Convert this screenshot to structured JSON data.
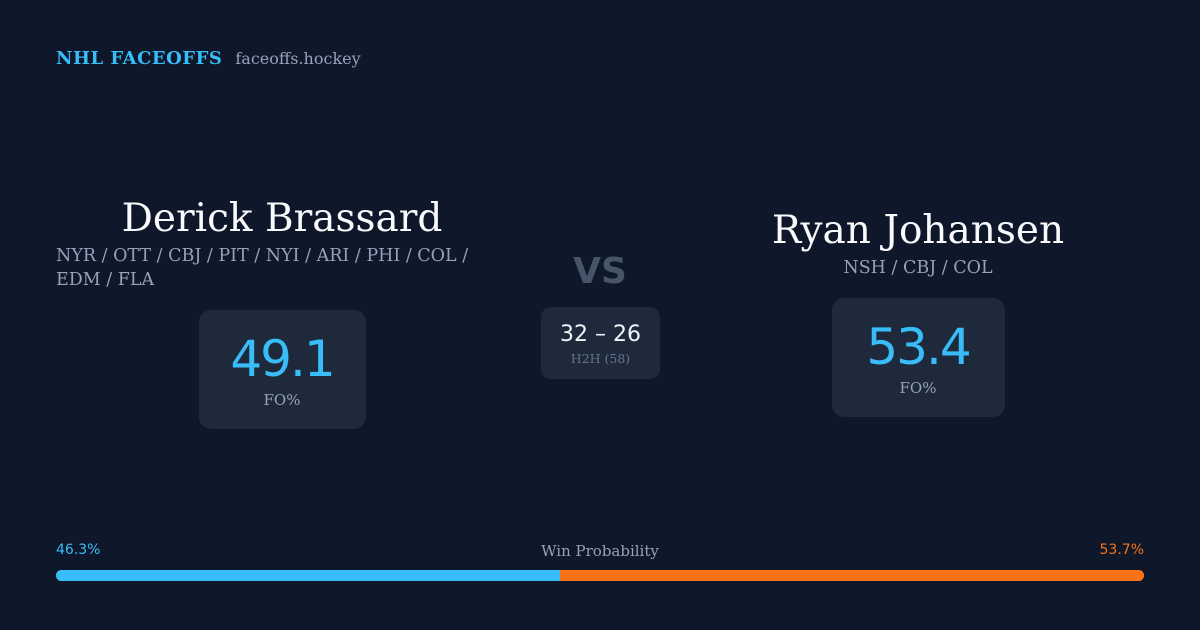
{
  "brand": {
    "name": "NHL FACEOFFS",
    "url": "faceoffs.hockey"
  },
  "player_left": {
    "name": "Derick Brassard",
    "teams": "NYR / OTT / CBJ / PIT / NYI / ARI / PHI / COL / EDM / FLA",
    "fo_pct": "49.1",
    "fo_label": "FO%"
  },
  "player_right": {
    "name": "Ryan Johansen",
    "teams": "NSH / CBJ / COL",
    "fo_pct": "53.4",
    "fo_label": "FO%"
  },
  "versus": {
    "label": "VS",
    "h2h_score": "32 – 26",
    "h2h_label": "H2H (58)"
  },
  "win_probability": {
    "title": "Win Probability",
    "left_label": "46.3%",
    "right_label": "53.7%",
    "left_value": 0.463,
    "right_value": 0.537
  },
  "colors": {
    "background": "#0f172a",
    "card": "#1e293b",
    "accent_blue": "#38bdf8",
    "accent_orange": "#f97316",
    "muted_text": "#94a3b8"
  }
}
